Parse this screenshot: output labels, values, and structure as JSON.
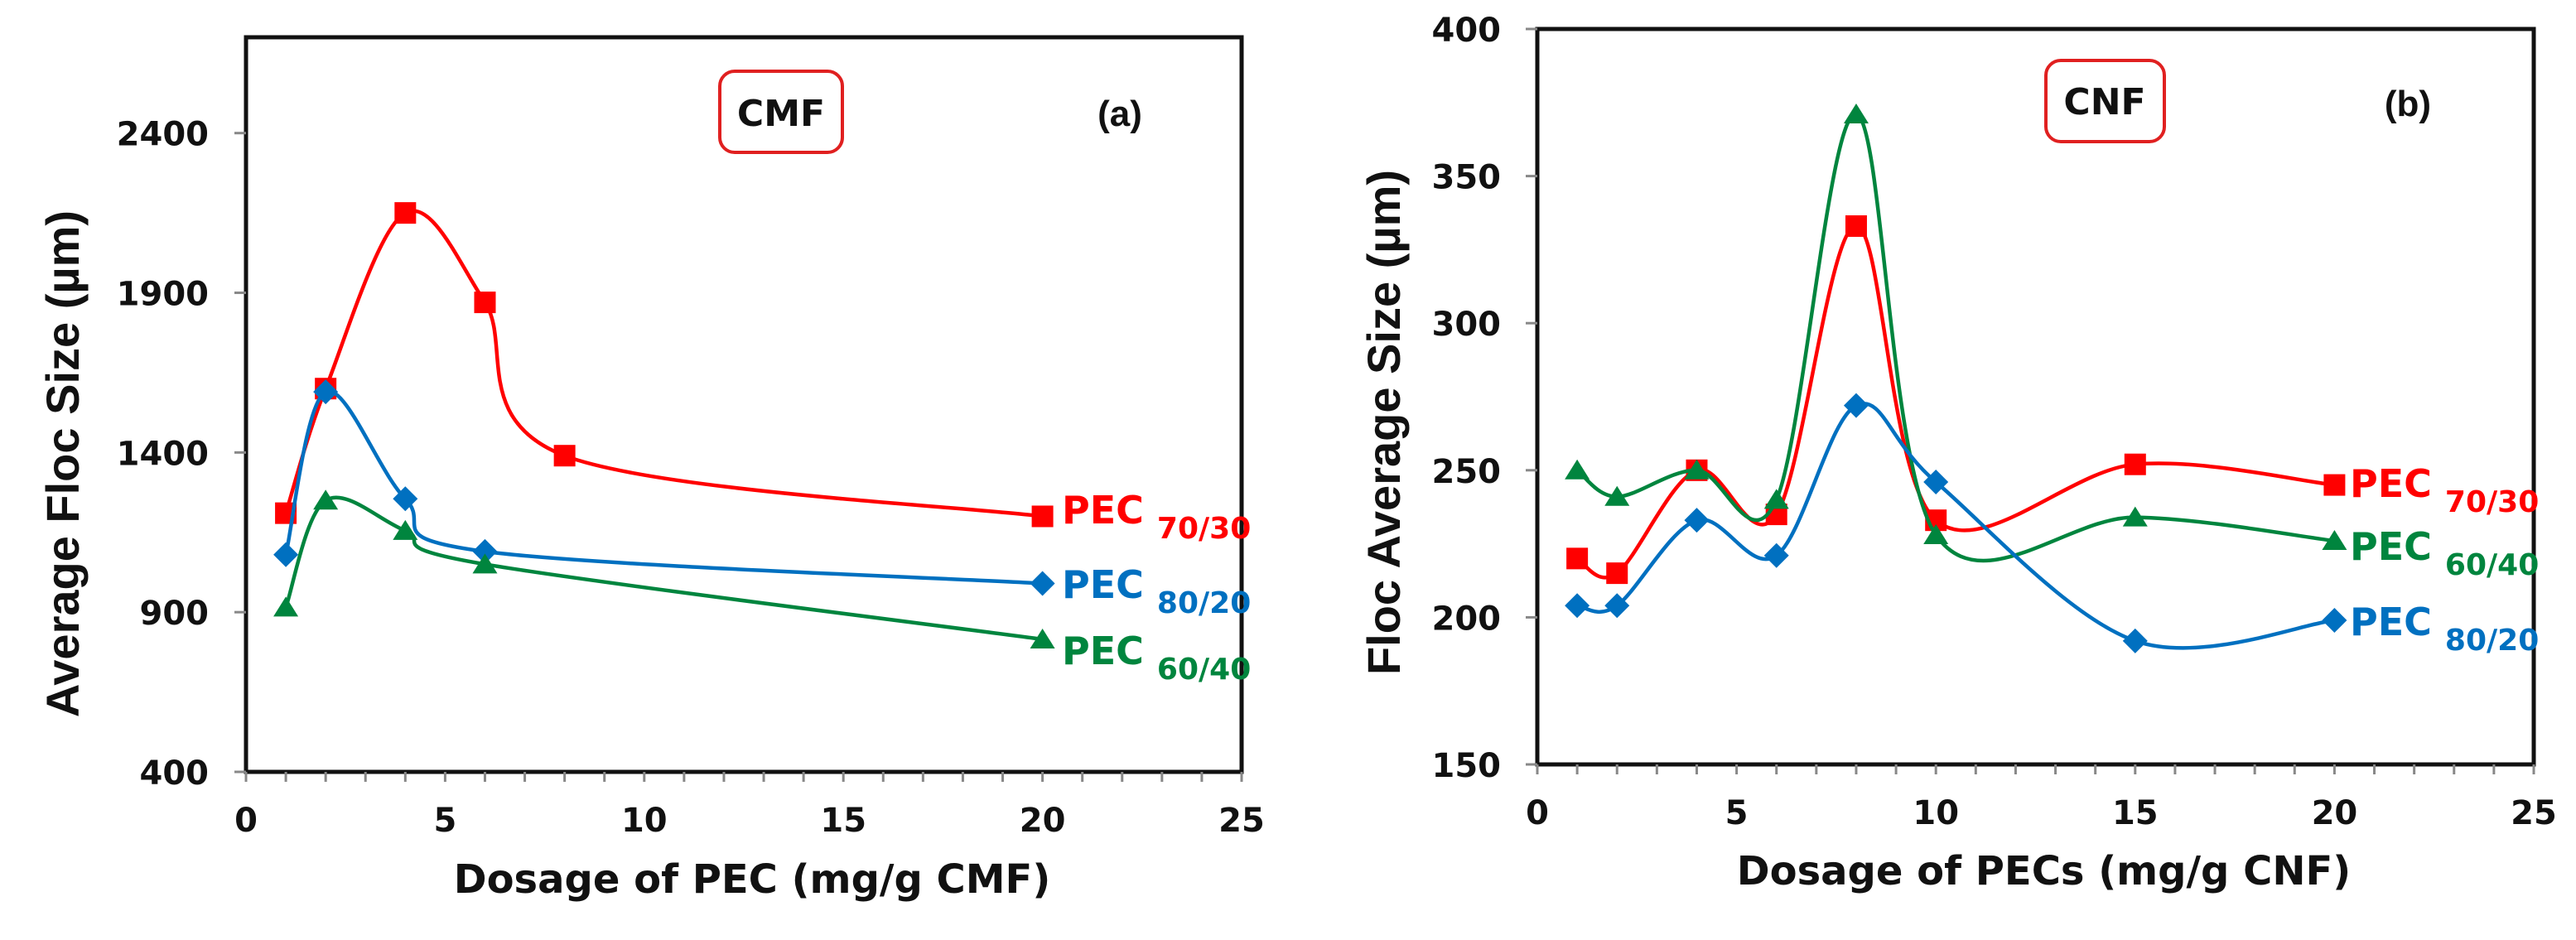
{
  "colors": {
    "PEC 70/30": "#ff0000",
    "PEC 80/20": "#0070c0",
    "PEC 60/40": "#00853e"
  },
  "chart_data": [
    {
      "type": "line",
      "panel_label": "(a)",
      "tag": "CMF",
      "xlabel": "Dosage of PEC (mg/g CMF)",
      "ylabel": "Average Floc Size (µm)",
      "xlim": [
        0,
        25
      ],
      "ylim": [
        400,
        2700
      ],
      "xticks": [
        0,
        5,
        10,
        15,
        20,
        25
      ],
      "yticks": [
        400,
        900,
        1400,
        1900,
        2400
      ],
      "grid": false,
      "smooth": true,
      "series": [
        {
          "name": "PEC",
          "sub": "70/30",
          "color": "#ff0000",
          "marker": "square",
          "x": [
            1,
            2,
            4,
            6,
            8,
            20
          ],
          "y": [
            1210,
            1600,
            2150,
            1870,
            1390,
            1200
          ]
        },
        {
          "name": "PEC",
          "sub": "80/20",
          "color": "#0070c0",
          "marker": "diamond",
          "x": [
            1,
            2,
            4,
            6,
            20
          ],
          "y": [
            1080,
            1590,
            1255,
            1090,
            990
          ]
        },
        {
          "name": "PEC",
          "sub": "60/40",
          "color": "#00853e",
          "marker": "triangle",
          "x": [
            1,
            2,
            4,
            6,
            20
          ],
          "y": [
            915,
            1250,
            1155,
            1050,
            815
          ]
        }
      ]
    },
    {
      "type": "line",
      "panel_label": "(b)",
      "tag": "CNF",
      "xlabel": "Dosage of PECs (mg/g CNF)",
      "ylabel": "Floc Average Size (µm)",
      "xlim": [
        0,
        25
      ],
      "ylim": [
        150,
        400
      ],
      "xticks": [
        0,
        5,
        10,
        15,
        20,
        25
      ],
      "yticks": [
        150,
        200,
        250,
        300,
        350,
        400
      ],
      "grid": false,
      "smooth": true,
      "series": [
        {
          "name": "PEC",
          "sub": "70/30",
          "color": "#ff0000",
          "marker": "square",
          "x": [
            1,
            2,
            4,
            6,
            8,
            10,
            15,
            20
          ],
          "y": [
            220,
            215,
            250,
            235,
            333,
            233,
            252,
            245
          ]
        },
        {
          "name": "PEC",
          "sub": "60/40",
          "color": "#00853e",
          "marker": "triangle",
          "x": [
            1,
            2,
            4,
            6,
            8,
            10,
            15,
            20
          ],
          "y": [
            250,
            241,
            250,
            240,
            371,
            228,
            234,
            226
          ]
        },
        {
          "name": "PEC",
          "sub": "80/20",
          "color": "#0070c0",
          "marker": "diamond",
          "x": [
            1,
            2,
            4,
            6,
            8,
            10,
            15,
            20
          ],
          "y": [
            204,
            204,
            233,
            221,
            272,
            246,
            192,
            199
          ]
        }
      ]
    }
  ]
}
